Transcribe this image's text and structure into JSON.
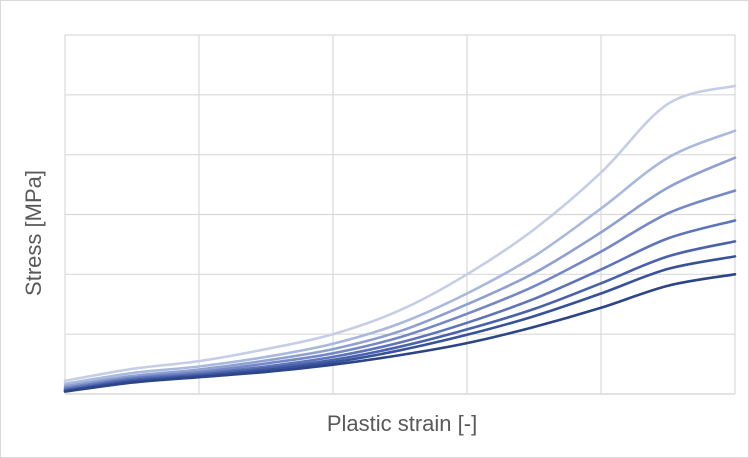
{
  "chart_data": {
    "type": "line",
    "title": "",
    "xlabel": "Plastic strain   [-]",
    "ylabel": "Stress   [MPa]",
    "xlim": [
      0,
      5
    ],
    "ylim": [
      0,
      6
    ],
    "grid": true,
    "legend": "none",
    "colors": {
      "grid": "#d9d9d9",
      "axis_text": "#595959"
    },
    "series": [
      {
        "color": "#c5cee6",
        "x": [
          0,
          0.5,
          1,
          1.5,
          2,
          2.5,
          3,
          3.5,
          4,
          4.5,
          5
        ],
        "values": [
          0.22,
          0.42,
          0.55,
          0.75,
          1.0,
          1.4,
          2.0,
          2.75,
          3.7,
          4.85,
          5.15
        ]
      },
      {
        "color": "#a9b8dd",
        "x": [
          0,
          0.5,
          1,
          1.5,
          2,
          2.5,
          3,
          3.5,
          4,
          4.5,
          5
        ],
        "values": [
          0.17,
          0.35,
          0.46,
          0.62,
          0.84,
          1.18,
          1.68,
          2.3,
          3.1,
          3.95,
          4.4
        ]
      },
      {
        "color": "#8ea0d2",
        "x": [
          0,
          0.5,
          1,
          1.5,
          2,
          2.5,
          3,
          3.5,
          4,
          4.5,
          5
        ],
        "values": [
          0.13,
          0.3,
          0.41,
          0.56,
          0.75,
          1.05,
          1.5,
          2.02,
          2.7,
          3.45,
          3.95
        ]
      },
      {
        "color": "#7588c6",
        "x": [
          0,
          0.5,
          1,
          1.5,
          2,
          2.5,
          3,
          3.5,
          4,
          4.5,
          5
        ],
        "values": [
          0.1,
          0.27,
          0.37,
          0.51,
          0.68,
          0.95,
          1.34,
          1.8,
          2.38,
          3.02,
          3.4
        ]
      },
      {
        "color": "#5e74ba",
        "x": [
          0,
          0.5,
          1,
          1.5,
          2,
          2.5,
          3,
          3.5,
          4,
          4.5,
          5
        ],
        "values": [
          0.08,
          0.25,
          0.34,
          0.46,
          0.62,
          0.86,
          1.19,
          1.59,
          2.08,
          2.6,
          2.9
        ]
      },
      {
        "color": "#4962ab",
        "x": [
          0,
          0.5,
          1,
          1.5,
          2,
          2.5,
          3,
          3.5,
          4,
          4.5,
          5
        ],
        "values": [
          0.06,
          0.23,
          0.32,
          0.43,
          0.57,
          0.79,
          1.08,
          1.42,
          1.85,
          2.3,
          2.55
        ]
      },
      {
        "color": "#38529a",
        "x": [
          0,
          0.5,
          1,
          1.5,
          2,
          2.5,
          3,
          3.5,
          4,
          4.5,
          5
        ],
        "values": [
          0.05,
          0.21,
          0.3,
          0.4,
          0.53,
          0.73,
          0.99,
          1.3,
          1.68,
          2.09,
          2.3
        ]
      },
      {
        "color": "#2c4488",
        "x": [
          0,
          0.5,
          1,
          1.5,
          2,
          2.5,
          3,
          3.5,
          4,
          4.5,
          5
        ],
        "values": [
          0.04,
          0.19,
          0.28,
          0.37,
          0.49,
          0.65,
          0.85,
          1.12,
          1.44,
          1.81,
          2.0
        ]
      }
    ]
  }
}
